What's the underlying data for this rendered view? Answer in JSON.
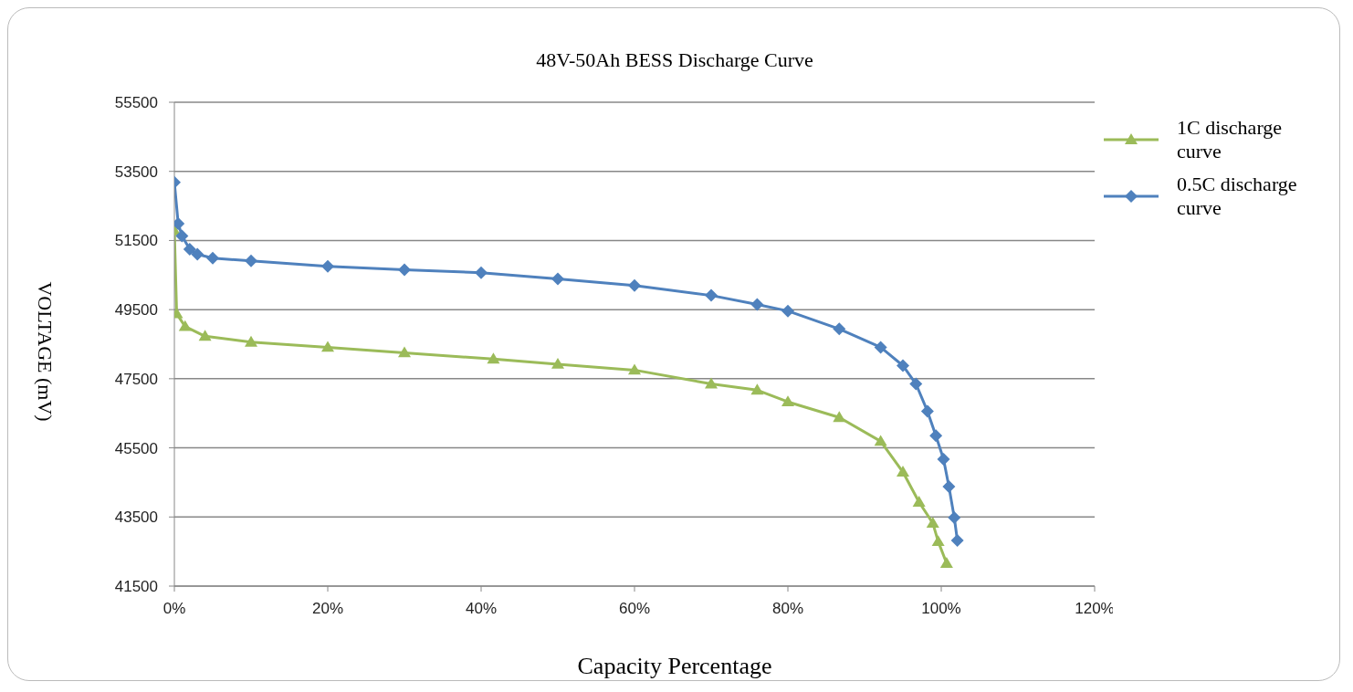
{
  "chart_data": {
    "type": "line",
    "title": "48V-50Ah BESS Discharge Curve",
    "xlabel": "Capacity Percentage",
    "ylabel": "VOLTAGE (mV)",
    "xlim": [
      0,
      120
    ],
    "xticks": [
      {
        "value": 0,
        "label": "0%"
      },
      {
        "value": 20,
        "label": "20%"
      },
      {
        "value": 40,
        "label": "40%"
      },
      {
        "value": 60,
        "label": "60%"
      },
      {
        "value": 80,
        "label": "80%"
      },
      {
        "value": 100,
        "label": "100%"
      },
      {
        "value": 120,
        "label": "120%"
      }
    ],
    "ylim": [
      41500,
      55500
    ],
    "yticks": [
      41500,
      43500,
      45500,
      47500,
      49500,
      51500,
      53500,
      55500
    ],
    "grid": "y",
    "legend": "right",
    "line_style": "solid",
    "series": [
      {
        "name": "1C discharge curve",
        "color": "#9bbb59",
        "marker": "triangle",
        "x": [
          0,
          0.3,
          1.4,
          4,
          10,
          20,
          30,
          41.6,
          50,
          60,
          70,
          76,
          80,
          86.7,
          92.1,
          95,
          97.1,
          98.9,
          99.6,
          100.7
        ],
        "values": [
          51780,
          49380,
          49010,
          48730,
          48560,
          48410,
          48250,
          48070,
          47920,
          47750,
          47350,
          47170,
          46830,
          46380,
          45690,
          44800,
          43930,
          43320,
          42790,
          42160
        ]
      },
      {
        "name": "0.5C discharge curve",
        "color": "#4f81bd",
        "marker": "diamond",
        "x": [
          0,
          0.5,
          1,
          2,
          3,
          5,
          10,
          20,
          30,
          40,
          50,
          60,
          70,
          76,
          80,
          86.7,
          92.1,
          95,
          96.7,
          98.2,
          99.3,
          100.3,
          101,
          101.7,
          102.1
        ],
        "values": [
          53180,
          51990,
          51630,
          51250,
          51100,
          50990,
          50910,
          50750,
          50650,
          50570,
          50390,
          50200,
          49910,
          49650,
          49460,
          48940,
          48410,
          47880,
          47350,
          46560,
          45850,
          45170,
          44380,
          43480,
          42820
        ]
      }
    ]
  }
}
